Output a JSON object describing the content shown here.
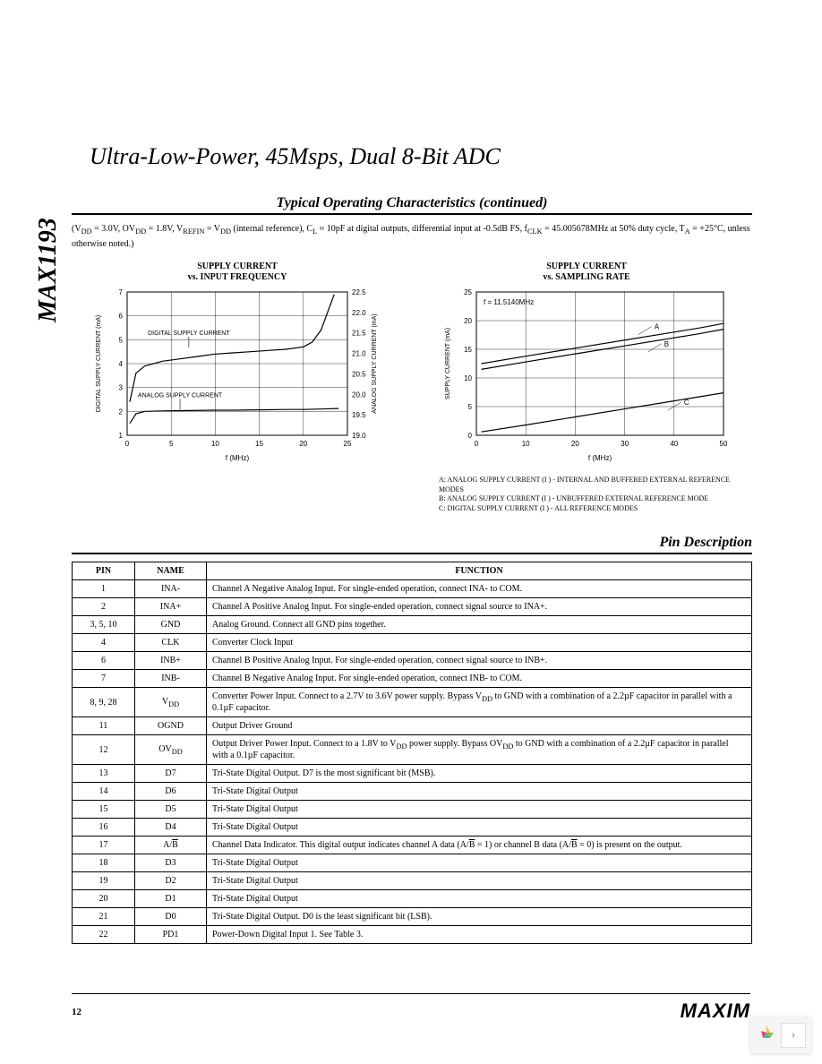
{
  "part_number": "MAX1193",
  "title": "Ultra-Low-Power, 45Msps, Dual 8-Bit ADC",
  "section1_header": "Typical Operating Characteristics (continued)",
  "conditions_line1": "(V",
  "conditions_dd1": "DD",
  "conditions_text1": " = 3.0V, OV",
  "conditions_dd2": "DD",
  "conditions_text2": " = 1.8V, V",
  "conditions_refin": "REFIN",
  "conditions_text3": " = V",
  "conditions_dd3": "DD",
  "conditions_text4": " (internal reference), C",
  "conditions_l": "L",
  "conditions_text5": " ≈ 10pF at digital outputs, differential input at -0.5dB FS, f",
  "conditions_clk": "CLK",
  "conditions_text6": " = 45.005678MHz at 50% duty cycle, T",
  "conditions_a": "A",
  "conditions_text7": " = +25°C, unless otherwise noted.)",
  "chart1": {
    "title_line1": "SUPPLY CURRENT",
    "title_line2": "vs. INPUT FREQUENCY",
    "xlabel": "f      (MHz)",
    "xsub": "IN",
    "ylabel_left": "DIGITAL SUPPLY CURRENT (mA)",
    "ylabel_right": "ANALOG SUPPLY CURRENT (mA)",
    "xlim": [
      0,
      25
    ],
    "xticks": [
      0,
      5,
      10,
      15,
      20,
      25
    ],
    "ylim_left": [
      1,
      7
    ],
    "yticks_left": [
      1,
      2,
      3,
      4,
      5,
      6,
      7
    ],
    "ylim_right": [
      19.0,
      22.5
    ],
    "yticks_right": [
      "19.0",
      "19.5",
      "20.0",
      "20.5",
      "21.0",
      "21.5",
      "22.0",
      "22.5"
    ],
    "series": [
      {
        "name": "DIGITAL SUPPLY CURRENT",
        "label_x": 7,
        "label_y": 5.2,
        "points_left": [
          [
            0.3,
            2.4
          ],
          [
            1,
            3.6
          ],
          [
            2,
            3.9
          ],
          [
            4,
            4.1
          ],
          [
            6,
            4.2
          ],
          [
            8,
            4.3
          ],
          [
            10,
            4.4
          ],
          [
            12,
            4.45
          ],
          [
            14,
            4.5
          ],
          [
            16,
            4.55
          ],
          [
            18,
            4.6
          ],
          [
            20,
            4.7
          ],
          [
            21,
            4.9
          ],
          [
            22,
            5.4
          ],
          [
            23,
            6.4
          ],
          [
            23.5,
            6.9
          ]
        ],
        "color": "#000000"
      },
      {
        "name": "ANALOG SUPPLY CURRENT",
        "label_x": 6,
        "label_y": 2.6,
        "points_left": [
          [
            0.3,
            1.5
          ],
          [
            1,
            1.9
          ],
          [
            2,
            2.0
          ],
          [
            4,
            2.02
          ],
          [
            6,
            2.03
          ],
          [
            8,
            2.04
          ],
          [
            10,
            2.05
          ],
          [
            12,
            2.05
          ],
          [
            14,
            2.06
          ],
          [
            16,
            2.07
          ],
          [
            18,
            2.08
          ],
          [
            20,
            2.08
          ],
          [
            22,
            2.1
          ],
          [
            24,
            2.12
          ]
        ],
        "color": "#000000"
      }
    ],
    "background": "#ffffff",
    "grid_color": "#000000",
    "line_width": 1.2
  },
  "chart2": {
    "title_line1": "SUPPLY CURRENT",
    "title_line2": "vs. SAMPLING RATE",
    "xlabel": "f        (MHz)",
    "xsub": "CLK",
    "ylabel": "SUPPLY CURRENT (mA)",
    "annotation": "f    = 11.5140MHz",
    "annotation_sub": "IN",
    "xlim": [
      0,
      50
    ],
    "xticks": [
      0,
      10,
      20,
      30,
      40,
      50
    ],
    "ylim": [
      0,
      25
    ],
    "yticks": [
      0,
      5,
      10,
      15,
      20,
      25
    ],
    "series": [
      {
        "name": "A",
        "points": [
          [
            1,
            12.5
          ],
          [
            10,
            13.8
          ],
          [
            20,
            15.2
          ],
          [
            30,
            16.6
          ],
          [
            40,
            18.0
          ],
          [
            45,
            18.7
          ],
          [
            50,
            19.5
          ]
        ],
        "label_pos": [
          36,
          18.5
        ],
        "color": "#000000"
      },
      {
        "name": "B",
        "points": [
          [
            1,
            11.5
          ],
          [
            10,
            12.8
          ],
          [
            20,
            14.2
          ],
          [
            30,
            15.6
          ],
          [
            40,
            17.0
          ],
          [
            45,
            17.7
          ],
          [
            50,
            18.5
          ]
        ],
        "label_pos": [
          38,
          15.5
        ],
        "color": "#000000"
      },
      {
        "name": "C",
        "points": [
          [
            1,
            0.6
          ],
          [
            10,
            1.8
          ],
          [
            20,
            3.2
          ],
          [
            30,
            4.6
          ],
          [
            40,
            6.0
          ],
          [
            45,
            6.7
          ],
          [
            50,
            7.4
          ]
        ],
        "label_pos": [
          42,
          5.3
        ],
        "color": "#000000"
      }
    ],
    "legend": [
      "A: ANALOG SUPPLY CURRENT (I    ) - INTERNAL AND BUFFERED EXTERNAL REFERENCE MODES",
      "B: ANALOG SUPPLY CURRENT (I    ) - UNBUFFERED EXTERNAL REFERENCE MODE",
      "C: DIGITAL SUPPLY CURRENT (I    ) - ALL REFERENCE MODES"
    ],
    "legend_sub": "VDD",
    "background": "#ffffff",
    "grid_color": "#000000",
    "line_width": 1.2
  },
  "section2_header": "Pin Description",
  "table": {
    "columns": [
      "PIN",
      "NAME",
      "FUNCTION"
    ],
    "rows": [
      [
        "1",
        "INA-",
        "Channel A Negative Analog Input. For single-ended operation, connect INA- to COM."
      ],
      [
        "2",
        "INA+",
        "Channel A Positive Analog Input. For single-ended operation, connect signal source to INA+."
      ],
      [
        "3, 5, 10",
        "GND",
        "Analog Ground. Connect all GND pins together."
      ],
      [
        "4",
        "CLK",
        "Converter Clock Input"
      ],
      [
        "6",
        "INB+",
        "Channel B Positive Analog Input. For single-ended operation, connect signal source to INB+."
      ],
      [
        "7",
        "INB-",
        "Channel B Negative Analog Input. For single-ended operation, connect INB- to COM."
      ],
      [
        "8, 9, 28",
        "V<sub>DD</sub>",
        "Converter Power Input. Connect to a 2.7V to 3.6V power supply. Bypass V<sub>DD</sub> to GND with a combination of a 2.2µF capacitor in parallel with a 0.1µF capacitor."
      ],
      [
        "11",
        "OGND",
        "Output Driver Ground"
      ],
      [
        "12",
        "OV<sub>DD</sub>",
        "Output Driver Power Input. Connect to a 1.8V to V<sub>DD</sub> power supply. Bypass OV<sub>DD</sub> to GND with a combination of a 2.2µF capacitor in parallel with a 0.1µF capacitor."
      ],
      [
        "13",
        "D7",
        "Tri-State Digital Output. D7 is the most significant bit (MSB)."
      ],
      [
        "14",
        "D6",
        "Tri-State Digital Output"
      ],
      [
        "15",
        "D5",
        "Tri-State Digital Output"
      ],
      [
        "16",
        "D4",
        "Tri-State Digital Output"
      ],
      [
        "17",
        "A/<span style='text-decoration:overline'>B</span>",
        "Channel Data Indicator. This digital output indicates channel A data (A/<span style='text-decoration:overline'>B</span> = 1) or channel B data (A/<span style='text-decoration:overline'>B</span> = 0) is present on the output."
      ],
      [
        "18",
        "D3",
        "Tri-State Digital Output"
      ],
      [
        "19",
        "D2",
        "Tri-State Digital Output"
      ],
      [
        "20",
        "D1",
        "Tri-State Digital Output"
      ],
      [
        "21",
        "D0",
        "Tri-State Digital Output. D0 is the least significant bit (LSB)."
      ],
      [
        "22",
        "PD1",
        "Power-Down Digital Input 1. See Table 3."
      ]
    ]
  },
  "page_number": "12",
  "logo_text": "MAXIM",
  "nav": {
    "next": "›"
  }
}
